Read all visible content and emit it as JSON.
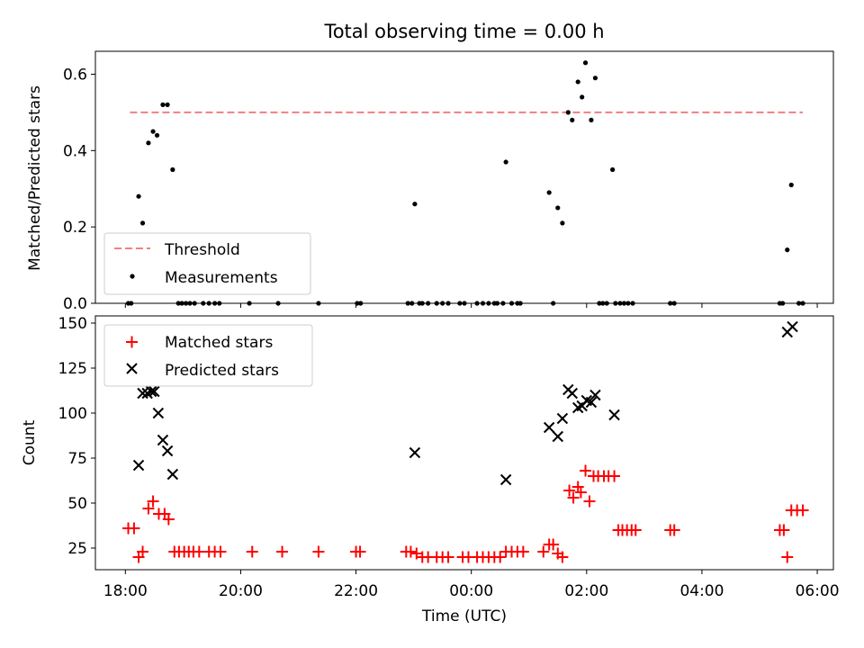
{
  "chart_data": [
    {
      "type": "scatter",
      "title": "Total observing time = 0.00 h",
      "xlabel": "",
      "ylabel": "Matched/Predicted stars",
      "ylim": [
        0,
        0.66
      ],
      "xlim_hours": [
        17.48,
        30.28
      ],
      "y_ticks": [
        0.0,
        0.2,
        0.4,
        0.6
      ],
      "y_tick_labels": [
        "0.0",
        "0.2",
        "0.4",
        "0.6"
      ],
      "threshold": {
        "name": "Threshold",
        "value": 0.5,
        "x_range": [
          18.08,
          29.75
        ],
        "color": "#f08080"
      },
      "legend": {
        "position": "lower-left",
        "entries": [
          "Threshold",
          "Measurements"
        ]
      },
      "series": [
        {
          "name": "Measurements",
          "color": "#000000",
          "x": [
            18.05,
            18.1,
            18.23,
            18.3,
            18.4,
            18.48,
            18.55,
            18.65,
            18.73,
            18.82,
            18.92,
            18.98,
            19.05,
            19.12,
            19.2,
            19.35,
            19.45,
            19.55,
            19.63,
            20.15,
            20.65,
            21.35,
            22.02,
            22.08,
            22.9,
            22.97,
            23.02,
            23.1,
            23.15,
            23.25,
            23.4,
            23.5,
            23.6,
            23.8,
            23.88,
            24.1,
            24.2,
            24.3,
            24.4,
            24.45,
            24.55,
            24.6,
            24.7,
            24.8,
            24.85,
            25.35,
            25.42,
            25.5,
            25.58,
            25.68,
            25.75,
            25.85,
            25.92,
            25.98,
            26.08,
            26.15,
            26.22,
            26.28,
            26.35,
            26.45,
            26.5,
            26.58,
            26.65,
            26.72,
            26.8,
            27.45,
            27.52,
            29.35,
            29.4,
            29.48,
            29.55,
            29.68,
            29.75
          ],
          "y": [
            0.0,
            0.0,
            0.28,
            0.21,
            0.42,
            0.45,
            0.44,
            0.52,
            0.52,
            0.35,
            0.0,
            0.0,
            0.0,
            0.0,
            0.0,
            0.0,
            0.0,
            0.0,
            0.0,
            0.0,
            0.0,
            0.0,
            0.0,
            0.0,
            0.0,
            0.0,
            0.26,
            0.0,
            0.0,
            0.0,
            0.0,
            0.0,
            0.0,
            0.0,
            0.0,
            0.0,
            0.0,
            0.0,
            0.0,
            0.0,
            0.0,
            0.37,
            0.0,
            0.0,
            0.0,
            0.29,
            0.0,
            0.25,
            0.21,
            0.5,
            0.48,
            0.58,
            0.54,
            0.63,
            0.48,
            0.59,
            0.0,
            0.0,
            0.0,
            0.35,
            0.0,
            0.0,
            0.0,
            0.0,
            0.0,
            0.0,
            0.0,
            0.0,
            0.0,
            0.14,
            0.31,
            0.0,
            0.0
          ]
        }
      ]
    },
    {
      "type": "scatter",
      "title": "",
      "xlabel": "Time (UTC)",
      "ylabel": "Count",
      "ylim": [
        13,
        154
      ],
      "xlim_hours": [
        17.48,
        30.28
      ],
      "y_ticks": [
        25,
        50,
        75,
        100,
        125,
        150
      ],
      "y_tick_labels": [
        "25",
        "50",
        "75",
        "100",
        "125",
        "150"
      ],
      "x_ticks_hours": [
        18,
        20,
        22,
        24,
        26,
        28,
        30
      ],
      "x_tick_labels": [
        "18:00",
        "20:00",
        "22:00",
        "00:00",
        "02:00",
        "04:00",
        "06:00"
      ],
      "legend": {
        "position": "upper-left",
        "entries": [
          "Matched stars",
          "Predicted stars"
        ]
      },
      "series": [
        {
          "name": "Matched stars",
          "marker": "+",
          "color": "#ff0000",
          "x": [
            18.05,
            18.15,
            18.23,
            18.3,
            18.4,
            18.48,
            18.58,
            18.68,
            18.75,
            18.85,
            18.93,
            19.02,
            19.1,
            19.18,
            19.28,
            19.45,
            19.55,
            19.65,
            20.2,
            20.72,
            21.35,
            22.0,
            22.07,
            22.87,
            22.95,
            23.05,
            23.15,
            23.25,
            23.4,
            23.5,
            23.6,
            23.85,
            23.95,
            24.1,
            24.2,
            24.3,
            24.4,
            24.5,
            24.6,
            24.7,
            24.8,
            24.9,
            25.25,
            25.35,
            25.42,
            25.5,
            25.58,
            25.7,
            25.77,
            25.85,
            25.9,
            25.98,
            26.05,
            26.12,
            26.2,
            26.3,
            26.38,
            26.48,
            26.55,
            26.62,
            26.7,
            26.78,
            26.85,
            27.45,
            27.52,
            29.35,
            29.42,
            29.48,
            29.55,
            29.65,
            29.75
          ],
          "y": [
            36,
            36,
            20,
            23,
            47,
            51,
            44,
            44,
            41,
            23,
            23,
            23,
            23,
            23,
            23,
            23,
            23,
            23,
            23,
            23,
            23,
            23,
            23,
            23,
            23,
            22,
            20,
            20,
            20,
            20,
            20,
            20,
            20,
            20,
            20,
            20,
            20,
            20,
            23,
            23,
            23,
            23,
            23,
            27,
            27,
            22,
            20,
            57,
            53,
            59,
            56,
            68,
            51,
            65,
            65,
            65,
            65,
            65,
            35,
            35,
            35,
            35,
            35,
            35,
            35,
            35,
            35,
            20,
            46,
            46,
            46
          ]
        },
        {
          "name": "Predicted stars",
          "marker": "x",
          "color": "#000000",
          "x": [
            18.23,
            18.3,
            18.38,
            18.45,
            18.5,
            18.57,
            18.65,
            18.73,
            18.82,
            23.02,
            24.6,
            25.35,
            25.5,
            25.58,
            25.68,
            25.75,
            25.85,
            25.92,
            26.0,
            26.08,
            26.15,
            26.48,
            29.48,
            29.57
          ],
          "y": [
            71,
            111,
            111,
            112,
            112,
            100,
            85,
            79,
            66,
            78,
            63,
            92,
            87,
            97,
            113,
            111,
            103,
            104,
            107,
            106,
            110,
            99,
            145,
            148
          ]
        }
      ]
    }
  ]
}
